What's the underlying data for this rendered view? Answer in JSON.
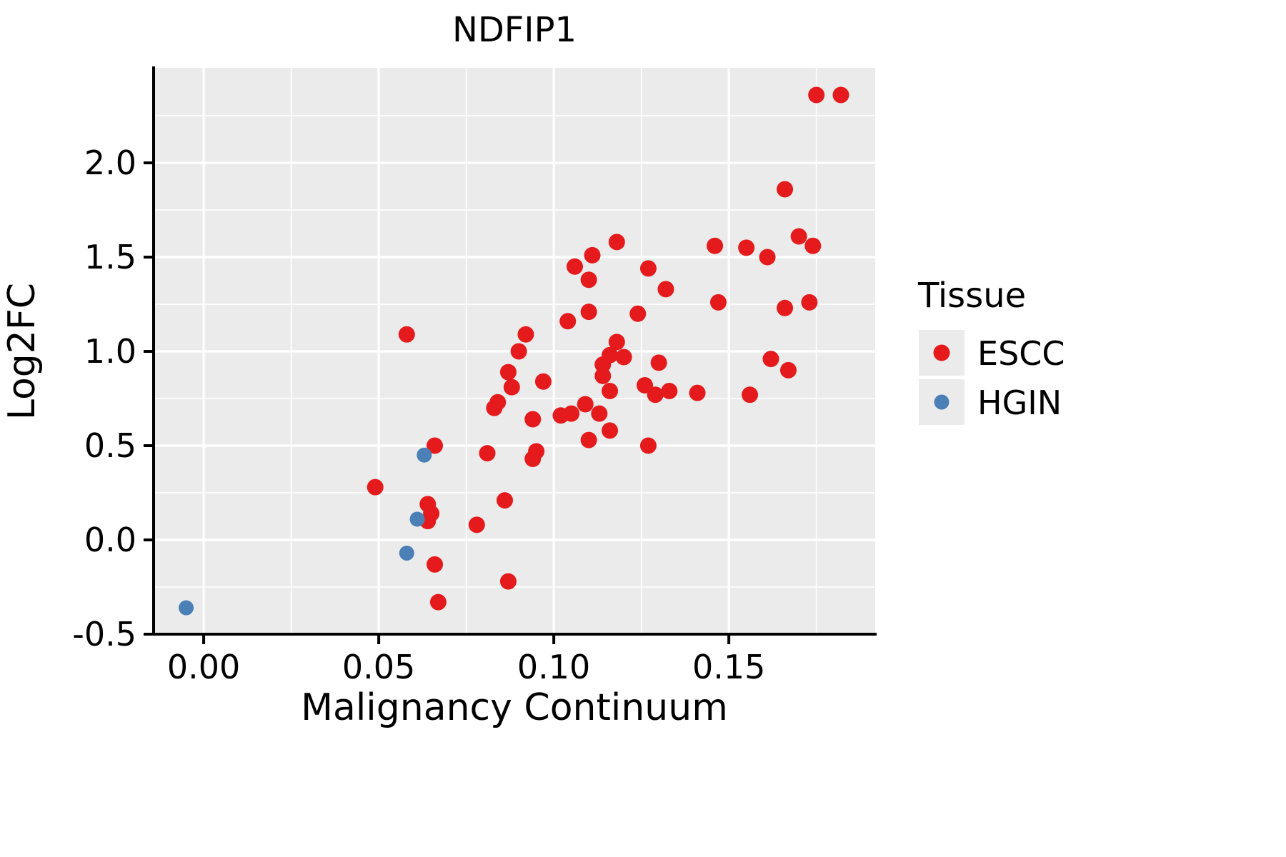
{
  "title": "NDFIP1",
  "chart_data": {
    "type": "scatter",
    "title": "NDFIP1",
    "xlabel": "Malignancy Continuum",
    "ylabel": "Log2FC",
    "xlim": [
      -0.0143,
      0.1918
    ],
    "ylim": [
      -0.5,
      2.504
    ],
    "x_ticks": [
      0.0,
      0.05,
      0.1,
      0.15
    ],
    "x_tick_labels": [
      "0.00",
      "0.05",
      "0.10",
      "0.15"
    ],
    "x_minor_ticks": [
      0.025,
      0.075,
      0.125,
      0.175
    ],
    "y_ticks": [
      -0.5,
      0.0,
      0.5,
      1.0,
      1.5,
      2.0
    ],
    "y_tick_labels": [
      "-0.5",
      "0.0",
      "0.5",
      "1.0",
      "1.5",
      "2.0"
    ],
    "y_minor_ticks": [
      -0.25,
      0.25,
      0.75,
      1.25,
      1.75,
      2.25
    ],
    "grid": true,
    "panel_background": "#EBEBEB",
    "grid_color": "#FFFFFF",
    "axis_color": "#000000",
    "legend": {
      "title": "Tissue",
      "position": "right",
      "key_background": "#EBEBEB",
      "entries": [
        {
          "label": "ESCC",
          "color": "#E41A1C"
        },
        {
          "label": "HGIN",
          "color": "#4A80B5"
        }
      ]
    },
    "series": [
      {
        "name": "ESCC",
        "color": "#E41A1C",
        "marker_radius": 11.5,
        "points": [
          [
            0.175,
            2.36
          ],
          [
            0.182,
            2.36
          ],
          [
            0.166,
            1.86
          ],
          [
            0.17,
            1.61
          ],
          [
            0.174,
            1.56
          ],
          [
            0.118,
            1.58
          ],
          [
            0.146,
            1.56
          ],
          [
            0.155,
            1.55
          ],
          [
            0.111,
            1.51
          ],
          [
            0.161,
            1.5
          ],
          [
            0.106,
            1.45
          ],
          [
            0.127,
            1.44
          ],
          [
            0.11,
            1.38
          ],
          [
            0.132,
            1.33
          ],
          [
            0.173,
            1.26
          ],
          [
            0.147,
            1.26
          ],
          [
            0.166,
            1.23
          ],
          [
            0.11,
            1.21
          ],
          [
            0.124,
            1.2
          ],
          [
            0.104,
            1.16
          ],
          [
            0.092,
            1.09
          ],
          [
            0.058,
            1.09
          ],
          [
            0.118,
            1.05
          ],
          [
            0.09,
            1.0
          ],
          [
            0.116,
            0.98
          ],
          [
            0.12,
            0.97
          ],
          [
            0.162,
            0.96
          ],
          [
            0.13,
            0.94
          ],
          [
            0.114,
            0.93
          ],
          [
            0.167,
            0.9
          ],
          [
            0.087,
            0.89
          ],
          [
            0.114,
            0.87
          ],
          [
            0.097,
            0.84
          ],
          [
            0.126,
            0.82
          ],
          [
            0.088,
            0.81
          ],
          [
            0.116,
            0.79
          ],
          [
            0.133,
            0.79
          ],
          [
            0.141,
            0.78
          ],
          [
            0.156,
            0.77
          ],
          [
            0.129,
            0.77
          ],
          [
            0.084,
            0.73
          ],
          [
            0.109,
            0.72
          ],
          [
            0.083,
            0.7
          ],
          [
            0.105,
            0.67
          ],
          [
            0.113,
            0.67
          ],
          [
            0.102,
            0.66
          ],
          [
            0.094,
            0.64
          ],
          [
            0.116,
            0.58
          ],
          [
            0.11,
            0.53
          ],
          [
            0.127,
            0.5
          ],
          [
            0.066,
            0.5
          ],
          [
            0.095,
            0.47
          ],
          [
            0.081,
            0.46
          ],
          [
            0.094,
            0.43
          ],
          [
            0.049,
            0.28
          ],
          [
            0.086,
            0.21
          ],
          [
            0.064,
            0.19
          ],
          [
            0.065,
            0.14
          ],
          [
            0.064,
            0.1
          ],
          [
            0.078,
            0.08
          ],
          [
            0.066,
            -0.13
          ],
          [
            0.087,
            -0.22
          ],
          [
            0.067,
            -0.33
          ]
        ]
      },
      {
        "name": "HGIN",
        "color": "#4A80B5",
        "marker_radius": 10.5,
        "points": [
          [
            0.063,
            0.45
          ],
          [
            0.061,
            0.11
          ],
          [
            0.058,
            -0.07
          ],
          [
            -0.005,
            -0.36
          ]
        ]
      }
    ]
  }
}
